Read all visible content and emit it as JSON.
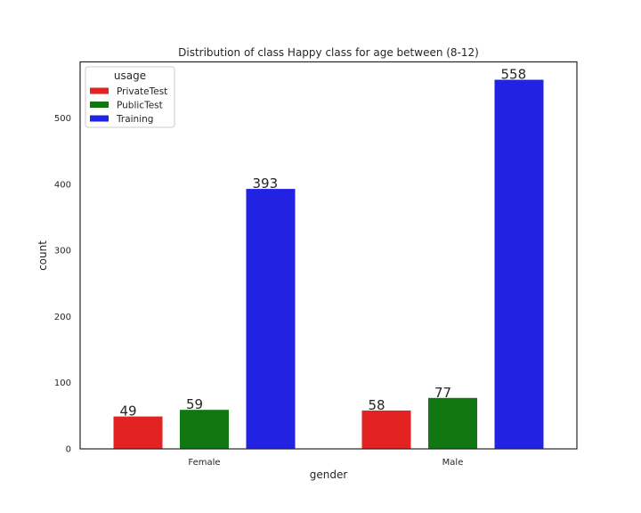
{
  "chart_data": {
    "type": "bar",
    "title": "Distribution of class Happy class for age between (8-12)",
    "xlabel": "gender",
    "ylabel": "count",
    "categories": [
      "Female",
      "Male"
    ],
    "ylim": [
      0,
      585
    ],
    "yticks": [
      0,
      100,
      200,
      300,
      400,
      500
    ],
    "grid": false,
    "legend": {
      "title": "usage",
      "placement": "top-left"
    },
    "series": [
      {
        "name": "PrivateTest",
        "color": "#e32222",
        "values": [
          49,
          58
        ]
      },
      {
        "name": "PublicTest",
        "color": "#117711",
        "values": [
          59,
          77
        ]
      },
      {
        "name": "Training",
        "color": "#2222e3",
        "values": [
          393,
          558
        ]
      }
    ]
  }
}
